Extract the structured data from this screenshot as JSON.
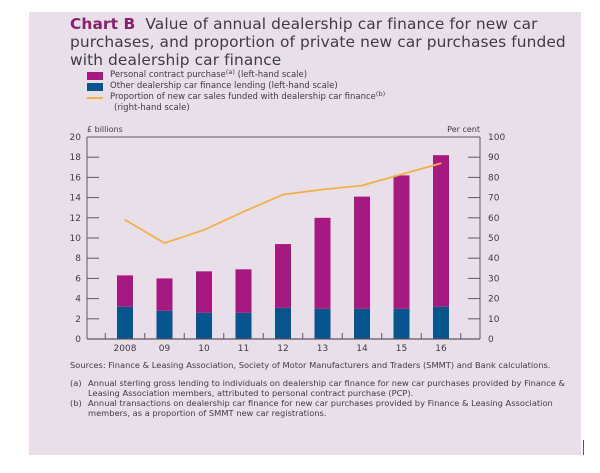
{
  "title": {
    "lead": "Chart B",
    "text": "Value of annual dealership car finance for new car purchases, and proportion of private new car purchases funded with dealership car finance"
  },
  "legend": [
    {
      "label": "Personal contract purchase",
      "sup": "(a)",
      "suffix": " (left-hand scale)",
      "kind": "bar",
      "color": "#a6197f"
    },
    {
      "label": "Other dealership car finance lending (left-hand scale)",
      "kind": "bar",
      "color": "#08548c"
    },
    {
      "label": "Proportion of new car sales funded with dealership car finance",
      "sup": "(b)",
      "sub": "(right-hand scale)",
      "kind": "line",
      "color": "#f2b04c"
    }
  ],
  "chart_data": {
    "type": "bar",
    "stacked": true,
    "title": "Value of annual dealership car finance for new car purchases, and proportion of private new car purchases funded with dealership car finance",
    "categories": [
      "2008",
      "09",
      "10",
      "11",
      "12",
      "13",
      "14",
      "15",
      "16"
    ],
    "series": [
      {
        "name": "Other dealership car finance lending (left-hand scale)",
        "axis": "left",
        "type": "bar",
        "color": "#08548c",
        "values": [
          3.2,
          2.8,
          2.6,
          2.6,
          3.1,
          3.0,
          3.0,
          3.0,
          3.2
        ]
      },
      {
        "name": "Personal contract purchase (left-hand scale)",
        "axis": "left",
        "type": "bar",
        "color": "#a6197f",
        "values": [
          3.1,
          3.2,
          4.1,
          4.3,
          6.3,
          9.0,
          11.1,
          13.2,
          15.0
        ]
      },
      {
        "name": "Proportion of new car sales funded with dealership car finance (right-hand scale)",
        "axis": "right",
        "type": "line",
        "color": "#f2b04c",
        "values": [
          59,
          47.5,
          54,
          63,
          71.5,
          74,
          76,
          81.5,
          87
        ]
      }
    ],
    "ylabel": "£ billions",
    "y2label": "Per cent",
    "ylim": [
      0,
      20
    ],
    "y2lim": [
      0,
      100
    ],
    "yticks": [
      "0",
      "2",
      "4",
      "6",
      "8",
      "10",
      "12",
      "14",
      "16",
      "18",
      "20"
    ],
    "y2ticks": [
      "0",
      "10",
      "20",
      "30",
      "40",
      "50",
      "60",
      "70",
      "80",
      "90",
      "100"
    ],
    "grid": false
  },
  "notes": {
    "sources": "Sources: Finance & Leasing Association, Society of Motor Manufacturers and Traders (SMMT) and Bank calculations.",
    "footnotes": [
      {
        "key": "(a)",
        "text": "Annual sterling gross lending to individuals on dealership car finance for new car purchases provided by Finance & Leasing Association members, attributed to personal contract purchase (PCP)."
      },
      {
        "key": "(b)",
        "text": "Annual transactions on dealership car finance for new car purchases provided by Finance & Leasing Association members, as a proportion of SMMT new car registrations."
      }
    ]
  }
}
